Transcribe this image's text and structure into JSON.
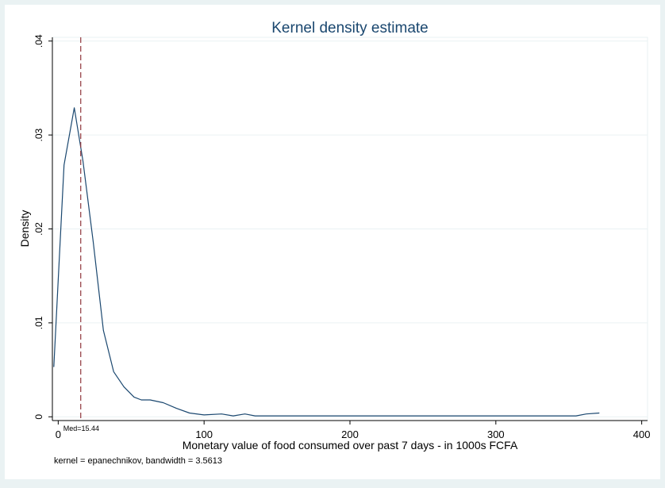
{
  "chart_data": {
    "type": "line",
    "title": "Kernel density estimate",
    "xlabel": "Monetary value of food consumed over past 7 days - in 1000s FCFA",
    "ylabel": "Density",
    "note": "kernel = epanechnikov, bandwidth = 3.5613",
    "xlim": [
      -4,
      404
    ],
    "ylim": [
      -0.0004,
      0.0404
    ],
    "x_ticks": [
      0,
      100,
      200,
      300,
      400
    ],
    "x_tick_labels": [
      "0",
      "100",
      "200",
      "300",
      "400"
    ],
    "y_ticks": [
      0,
      0.01,
      0.02,
      0.03,
      0.04
    ],
    "y_tick_labels": [
      "0",
      ".01",
      ".02",
      ".03",
      ".04"
    ],
    "grid": true,
    "series": [
      {
        "color": "#1a476f",
        "x": [
          -3,
          4,
          11,
          17,
          24,
          31,
          38,
          45,
          52,
          57,
          63,
          72,
          81,
          90,
          100,
          112,
          120,
          128,
          135,
          150,
          200,
          250,
          280,
          300,
          320,
          355,
          362,
          371
        ],
        "y": [
          0.0053,
          0.0268,
          0.0329,
          0.0272,
          0.0186,
          0.0092,
          0.0048,
          0.0032,
          0.0021,
          0.0018,
          0.0018,
          0.0015,
          0.0009,
          0.0004,
          0.0002,
          0.0003,
          0.0001,
          0.0003,
          0.0001,
          0.0001,
          0.0001,
          0.0001,
          0.0001,
          0.0001,
          0.0001,
          0.0001,
          0.0003,
          0.0004
        ]
      }
    ],
    "reference_line": {
      "x": 15.44,
      "label": "Med=15.44",
      "color": "#90353b",
      "style": "dashed"
    }
  },
  "colors": {
    "background": "#eaf2f3",
    "plot_background": "#ffffff",
    "grid": "#eaf2f3",
    "axis": "#000000",
    "title": "#1a476f"
  }
}
